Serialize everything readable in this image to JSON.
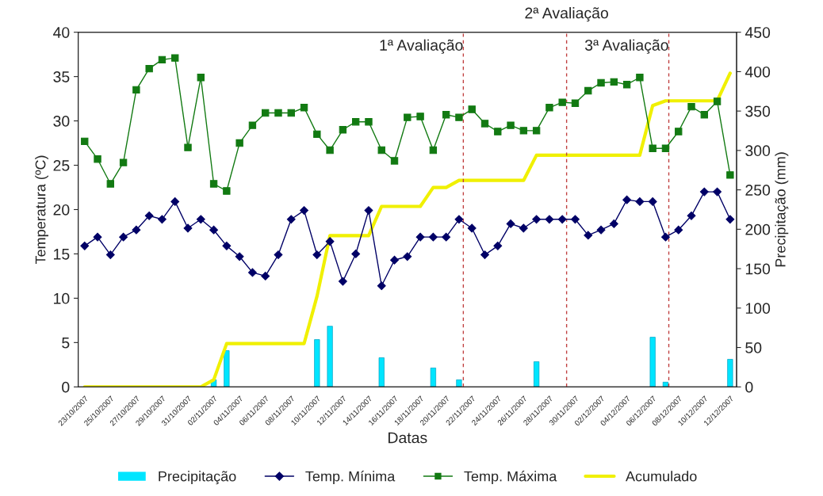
{
  "chart_data": {
    "type": "line",
    "xlabel": "Datas",
    "ylabel": "Temperatura (ºC)",
    "y2label": "Precipitação (mm)",
    "x": [
      "2007-10-23",
      "2007-10-24",
      "2007-10-25",
      "2007-10-26",
      "2007-10-27",
      "2007-10-28",
      "2007-10-29",
      "2007-10-30",
      "2007-10-31",
      "2007-11-01",
      "2007-11-02",
      "2007-11-03",
      "2007-11-04",
      "2007-11-05",
      "2007-11-06",
      "2007-11-07",
      "2007-11-08",
      "2007-11-09",
      "2007-11-10",
      "2007-11-11",
      "2007-11-12",
      "2007-11-13",
      "2007-11-14",
      "2007-11-15",
      "2007-11-16",
      "2007-11-17",
      "2007-11-18",
      "2007-11-19",
      "2007-11-20",
      "2007-11-21",
      "2007-11-22",
      "2007-11-23",
      "2007-11-24",
      "2007-11-25",
      "2007-11-26",
      "2007-11-27",
      "2007-11-28",
      "2007-11-29",
      "2007-11-30",
      "2007-12-01",
      "2007-12-02",
      "2007-12-03",
      "2007-12-04",
      "2007-12-05",
      "2007-12-06",
      "2007-12-07",
      "2007-12-08",
      "2007-12-09",
      "2007-12-10",
      "2007-12-11",
      "2007-12-12"
    ],
    "series": [
      {
        "name": "Precipitação",
        "type": "bar",
        "axis": "y2",
        "color": "#00e5ff",
        "values": [
          null,
          null,
          null,
          null,
          null,
          null,
          null,
          null,
          null,
          null,
          9,
          46,
          null,
          null,
          null,
          null,
          null,
          null,
          60,
          77,
          null,
          null,
          null,
          37,
          null,
          null,
          null,
          24,
          null,
          9,
          null,
          null,
          null,
          null,
          null,
          32,
          null,
          null,
          null,
          null,
          null,
          null,
          null,
          null,
          63,
          6,
          null,
          null,
          null,
          null,
          35
        ]
      },
      {
        "name": "Temp. Mínima",
        "color": "#000066",
        "marker": "diamond",
        "values": [
          15.9,
          16.9,
          14.9,
          16.9,
          17.7,
          19.3,
          18.9,
          20.9,
          17.9,
          18.9,
          17.7,
          15.9,
          14.7,
          12.9,
          12.5,
          14.9,
          18.9,
          19.9,
          14.9,
          16.4,
          11.9,
          15.0,
          19.9,
          11.4,
          14.3,
          14.7,
          16.9,
          16.9,
          16.9,
          18.9,
          17.9,
          14.9,
          15.9,
          18.4,
          17.9,
          18.9,
          18.9,
          18.9,
          18.9,
          17.1,
          17.7,
          18.4,
          21.1,
          20.9,
          20.9,
          16.9,
          17.7,
          19.3,
          22.0,
          22.0,
          18.9
        ]
      },
      {
        "name": "Temp. Máxima",
        "color": "#127a12",
        "marker": "square",
        "values": [
          27.7,
          25.7,
          22.9,
          25.3,
          33.5,
          35.9,
          36.9,
          37.1,
          27.0,
          34.9,
          22.9,
          22.1,
          27.5,
          29.5,
          30.9,
          30.9,
          30.9,
          31.5,
          28.5,
          26.7,
          29.0,
          29.9,
          29.9,
          26.7,
          25.5,
          30.4,
          30.5,
          26.7,
          30.7,
          30.4,
          31.3,
          29.7,
          28.8,
          29.5,
          28.9,
          28.9,
          31.5,
          32.1,
          32.0,
          33.4,
          34.3,
          34.4,
          34.1,
          34.9,
          26.9,
          26.9,
          28.8,
          31.6,
          30.7,
          32.2,
          23.9
        ]
      },
      {
        "name": "Acumulado",
        "axis": "y2",
        "color": "#f0f000",
        "marker": "none",
        "values": [
          0,
          0,
          0,
          0,
          0,
          0,
          0,
          0,
          0,
          0,
          9,
          55,
          55,
          55,
          55,
          55,
          55,
          55,
          115,
          192,
          192,
          192,
          192,
          229,
          229,
          229,
          229,
          253,
          253,
          262,
          262,
          262,
          262,
          262,
          262,
          294,
          294,
          294,
          294,
          294,
          294,
          294,
          294,
          294,
          357,
          363,
          363,
          363,
          363,
          363,
          398
        ]
      }
    ],
    "xlim": [
      "2007-10-22T12:00",
      "2007-12-12T12:00"
    ],
    "xticks": [
      {
        "value": "2007-10-23",
        "label": "23/10/2007"
      },
      {
        "value": "2007-10-25",
        "label": "25/10/2007"
      },
      {
        "value": "2007-10-27",
        "label": "27/10/2007"
      },
      {
        "value": "2007-10-29",
        "label": "29/10/2007"
      },
      {
        "value": "2007-10-31",
        "label": "31/10/2007"
      },
      {
        "value": "2007-11-02",
        "label": "02/11/2007"
      },
      {
        "value": "2007-11-04",
        "label": "04/11/2007"
      },
      {
        "value": "2007-11-06",
        "label": "06/11/2007"
      },
      {
        "value": "2007-11-08",
        "label": "08/11/2007"
      },
      {
        "value": "2007-11-10",
        "label": "10/11/2007"
      },
      {
        "value": "2007-11-12",
        "label": "12/11/2007"
      },
      {
        "value": "2007-11-14",
        "label": "14/11/2007"
      },
      {
        "value": "2007-11-16",
        "label": "16/11/2007"
      },
      {
        "value": "2007-11-18",
        "label": "18/11/2007"
      },
      {
        "value": "2007-11-20",
        "label": "20/11/2007"
      },
      {
        "value": "2007-11-22",
        "label": "22/11/2007"
      },
      {
        "value": "2007-11-24",
        "label": "24/11/2007"
      },
      {
        "value": "2007-11-26",
        "label": "26/11/2007"
      },
      {
        "value": "2007-11-28",
        "label": "28/11/2007"
      },
      {
        "value": "2007-11-30",
        "label": "30/11/2007"
      },
      {
        "value": "2007-12-02",
        "label": "02/12/2007"
      },
      {
        "value": "2007-12-04",
        "label": "04/12/2007"
      },
      {
        "value": "2007-12-06",
        "label": "06/12/2007"
      },
      {
        "value": "2007-12-08",
        "label": "08/12/2007"
      },
      {
        "value": "2007-12-10",
        "label": "10/12/2007"
      },
      {
        "value": "2007-12-12",
        "label": "12/12/2007"
      }
    ],
    "ylim": [
      0,
      40
    ],
    "yticks": [
      0,
      5,
      10,
      15,
      20,
      25,
      30,
      35,
      40
    ],
    "y2lim": [
      0,
      450
    ],
    "y2ticks": [
      0,
      50,
      100,
      150,
      200,
      250,
      300,
      350,
      400,
      450
    ],
    "ref_lines": [
      {
        "axis": "x",
        "value": "2007-11-21T08:00",
        "label": "1ª Avaliação",
        "color": "#c04040",
        "line_style": "dashed"
      },
      {
        "axis": "x",
        "value": "2007-11-29T08:00",
        "label": "2ª Avaliação",
        "color": "#c04040",
        "line_style": "dashed"
      },
      {
        "axis": "x",
        "value": "2007-12-07T06:00",
        "label": "3ª Avaliação",
        "color": "#c04040",
        "line_style": "dashed"
      }
    ],
    "grid": false,
    "legend": "bottom"
  }
}
